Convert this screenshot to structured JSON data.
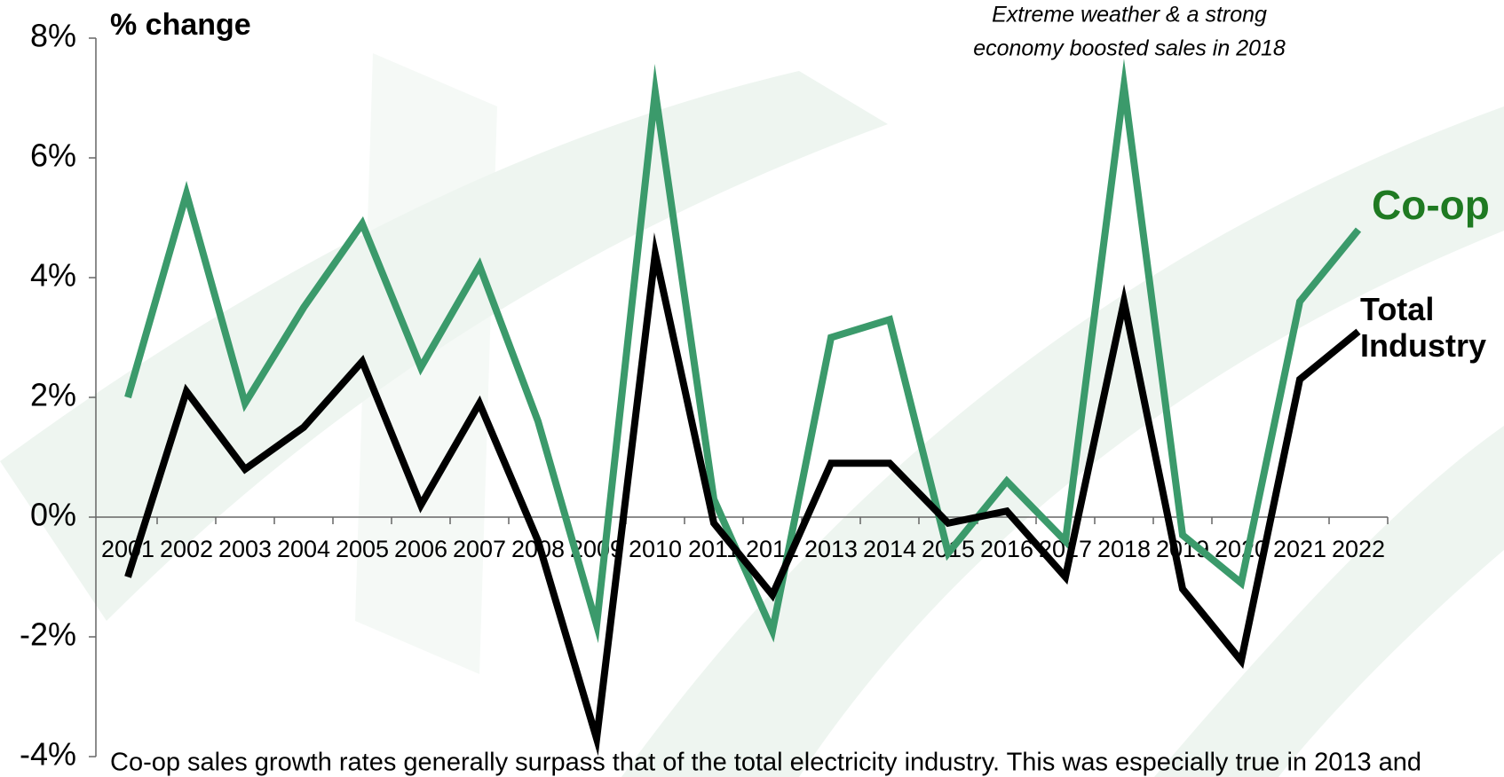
{
  "chart_data": {
    "type": "line",
    "title": "% change",
    "annotation": [
      "Extreme weather & a strong",
      "economy boosted sales in 2018"
    ],
    "footnote": "Co-op sales growth rates generally surpass that of the total electricity industry. This was especially true in 2013 and",
    "categories": [
      "2001",
      "2002",
      "2003",
      "2004",
      "2005",
      "2006",
      "2007",
      "2008",
      "2009",
      "2010",
      "2011",
      "2012",
      "2013",
      "2014",
      "2015",
      "2016",
      "2017",
      "2018",
      "2019",
      "2020",
      "2021",
      "2022"
    ],
    "series": [
      {
        "name": "Co-op",
        "color": "#3b9a6b",
        "label_color": "#1f7a22",
        "values": [
          2.0,
          5.4,
          1.9,
          3.5,
          4.9,
          2.5,
          4.2,
          1.6,
          -1.8,
          7.1,
          0.3,
          -1.9,
          3.0,
          3.3,
          -0.6,
          0.6,
          -0.4,
          7.2,
          -0.3,
          -1.1,
          3.6,
          4.8
        ]
      },
      {
        "name": "Total Industry",
        "color": "#000000",
        "label_color": "#000000",
        "values": [
          -1.0,
          2.1,
          0.8,
          1.5,
          2.6,
          0.2,
          1.9,
          -0.4,
          -3.7,
          4.4,
          -0.1,
          -1.3,
          0.9,
          0.9,
          -0.1,
          0.1,
          -1.0,
          3.6,
          -1.2,
          -2.4,
          2.3,
          3.1
        ]
      }
    ],
    "ylim": [
      -4,
      8
    ],
    "yticks": [
      {
        "value": -4,
        "label": "-4%"
      },
      {
        "value": -2,
        "label": "-2%"
      },
      {
        "value": 0,
        "label": "0%"
      },
      {
        "value": 2,
        "label": "2%"
      },
      {
        "value": 4,
        "label": "4%"
      },
      {
        "value": 6,
        "label": "6%"
      },
      {
        "value": 8,
        "label": "8%"
      }
    ]
  }
}
